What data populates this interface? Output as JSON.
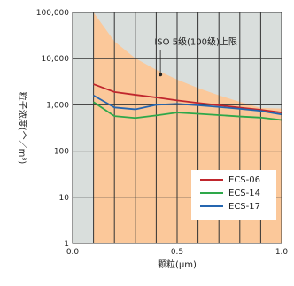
{
  "chart_data": {
    "type": "line",
    "title": "",
    "xlabel": "颗粒(μm)",
    "ylabel": "粒子浓度(个／m³)",
    "x_scale": "linear",
    "y_scale": "log",
    "xlim": [
      0.0,
      1.0
    ],
    "ylim": [
      1,
      100000
    ],
    "x_ticks": [
      {
        "value": 0.0,
        "label": "0.0"
      },
      {
        "value": 0.5,
        "label": "0.5"
      },
      {
        "value": 1.0,
        "label": "1.0"
      }
    ],
    "y_ticks": [
      {
        "value": 1,
        "label": "1"
      },
      {
        "value": 10,
        "label": "10"
      },
      {
        "value": 100,
        "label": "100"
      },
      {
        "value": 1000,
        "label": "1,000"
      },
      {
        "value": 10000,
        "label": "10,000"
      },
      {
        "value": 100000,
        "label": "100,000"
      }
    ],
    "x_gridlines": [
      0.1,
      0.2,
      0.3,
      0.4,
      0.5,
      0.6,
      0.7,
      0.8,
      0.9,
      1.0
    ],
    "grid": true,
    "plot_background": "#d9dedc",
    "grid_color": "#333333",
    "limit_band": {
      "label": "ISO 5级(100级)上限",
      "color": "#fbc89a",
      "x": [
        0.1,
        0.2,
        0.3,
        0.4,
        0.5,
        0.6,
        0.7,
        0.8,
        0.9,
        1.0
      ],
      "y": [
        100000,
        23700,
        10200,
        5720,
        3520,
        2320,
        1610,
        1160,
        860,
        830
      ]
    },
    "annotation": {
      "text": "ISO 5级(100级)上限",
      "x": 0.42,
      "y": 4500
    },
    "series": [
      {
        "name": "ECS-06",
        "color": "#c0262d",
        "x": [
          0.1,
          0.2,
          0.3,
          0.4,
          0.5,
          0.6,
          0.7,
          0.8,
          0.9,
          1.0
        ],
        "y": [
          2800,
          1900,
          1650,
          1450,
          1250,
          1100,
          980,
          870,
          780,
          680
        ]
      },
      {
        "name": "ECS-14",
        "color": "#2ea84a",
        "x": [
          0.1,
          0.2,
          0.3,
          0.4,
          0.5,
          0.6,
          0.7,
          0.8,
          0.9,
          1.0
        ],
        "y": [
          1150,
          570,
          520,
          590,
          680,
          640,
          600,
          560,
          530,
          470
        ]
      },
      {
        "name": "ECS-17",
        "color": "#2566b0",
        "x": [
          0.1,
          0.2,
          0.3,
          0.4,
          0.5,
          0.6,
          0.7,
          0.8,
          0.9,
          1.0
        ],
        "y": [
          1600,
          880,
          800,
          1000,
          1050,
          980,
          900,
          820,
          740,
          620
        ]
      }
    ],
    "legend": {
      "position": "bottom-right"
    }
  }
}
